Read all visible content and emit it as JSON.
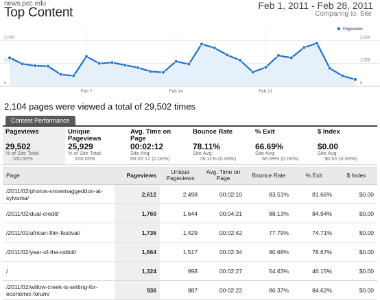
{
  "header": {
    "site": "news.pcc.edu",
    "title": "Top Content",
    "date_range": "Feb 1, 2011 - Feb 28, 2011",
    "comparing": "Comparing to: Site"
  },
  "chart_data": {
    "type": "line",
    "legend": "Pageviews",
    "legend_position": "top-right",
    "y_ticks_left": [
      "2,000",
      "1,000",
      "0"
    ],
    "y_ticks_right": [
      "2,000",
      "1,000",
      "0"
    ],
    "ylim": [
      0,
      2400
    ],
    "x_labels": [
      "Feb 7",
      "Feb 14",
      "Feb 21"
    ],
    "x_label_days": [
      7,
      14,
      21
    ],
    "series": [
      {
        "name": "Pageviews",
        "color": "#1a6fd0",
        "x": [
          1,
          2,
          3,
          4,
          5,
          6,
          7,
          8,
          9,
          10,
          11,
          12,
          13,
          14,
          15,
          16,
          17,
          18,
          19,
          20,
          21,
          22,
          23,
          24,
          25,
          26,
          27,
          28
        ],
        "values": [
          1250,
          980,
          900,
          880,
          520,
          460,
          1310,
          1000,
          1040,
          930,
          820,
          650,
          610,
          1090,
          970,
          1850,
          1680,
          1370,
          1140,
          620,
          830,
          1350,
          1250,
          1700,
          1890,
          790,
          460,
          300
        ]
      }
    ],
    "grid": true
  },
  "summary": "2,104 pages were viewed a total of 29,502 times",
  "tab": "Content Performance",
  "metrics": [
    {
      "label": "Pageviews",
      "value": "29,502",
      "sub1": "% of Site Total:",
      "sub2": "100.00%"
    },
    {
      "label": "Unique Pageviews",
      "value": "25,929",
      "sub1": "% of Site Total:",
      "sub2": "100.00%"
    },
    {
      "label": "Avg. Time on Page",
      "value": "00:02:12",
      "sub1": "Site Avg:",
      "sub2": "00:02:12 (0.00%)"
    },
    {
      "label": "Bounce Rate",
      "value": "78.11%",
      "sub1": "Site Avg:",
      "sub2": "78.11% (0.00%)"
    },
    {
      "label": "% Exit",
      "value": "66.69%",
      "sub1": "Site Avg:",
      "sub2": "66.69% (0.00%)"
    },
    {
      "label": "$ Index",
      "value": "$0.00",
      "sub1": "Site Avg:",
      "sub2": "$0.00 (0.00%)"
    }
  ],
  "table": {
    "headers": [
      "Page",
      "Pageviews",
      "Unique Pageviews",
      "Avg. Time on Page",
      "Bounce Rate",
      "% Exit",
      "$ Index"
    ],
    "rows": [
      [
        "/2011/02/photos-snowmaggeddon-at-sylvania/",
        "2,612",
        "2,498",
        "00:02:10",
        "83.51%",
        "81.66%",
        "$0.00"
      ],
      [
        "/2011/02/dual-credit/",
        "1,760",
        "1,644",
        "00:04:21",
        "88.13%",
        "84.94%",
        "$0.00"
      ],
      [
        "/2011/01/african-film-festival/",
        "1,736",
        "1,429",
        "00:02:42",
        "77.79%",
        "74.71%",
        "$0.00"
      ],
      [
        "/2011/02/year-of-the-rabbit/",
        "1,664",
        "1,517",
        "00:02:34",
        "80.68%",
        "78.67%",
        "$0.00"
      ],
      [
        "/",
        "1,324",
        "998",
        "00:02:27",
        "54.63%",
        "46.15%",
        "$0.00"
      ],
      [
        "/2011/02/willow-creek-is-setting-for-economic-forum/",
        "936",
        "887",
        "00:02:22",
        "86.37%",
        "84.62%",
        "$0.00"
      ]
    ]
  }
}
